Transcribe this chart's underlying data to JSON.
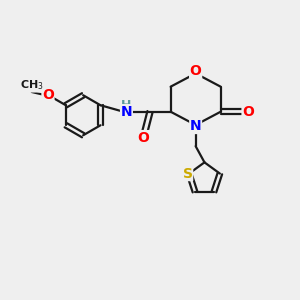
{
  "bg_color": "#efefef",
  "bond_color": "#1a1a1a",
  "bond_width": 1.6,
  "atom_colors": {
    "O": "#ff0000",
    "N": "#0000ff",
    "S": "#ccaa00",
    "H": "#5a9a9a",
    "C": "#1a1a1a"
  },
  "font_size_atom": 10,
  "font_size_small": 9
}
